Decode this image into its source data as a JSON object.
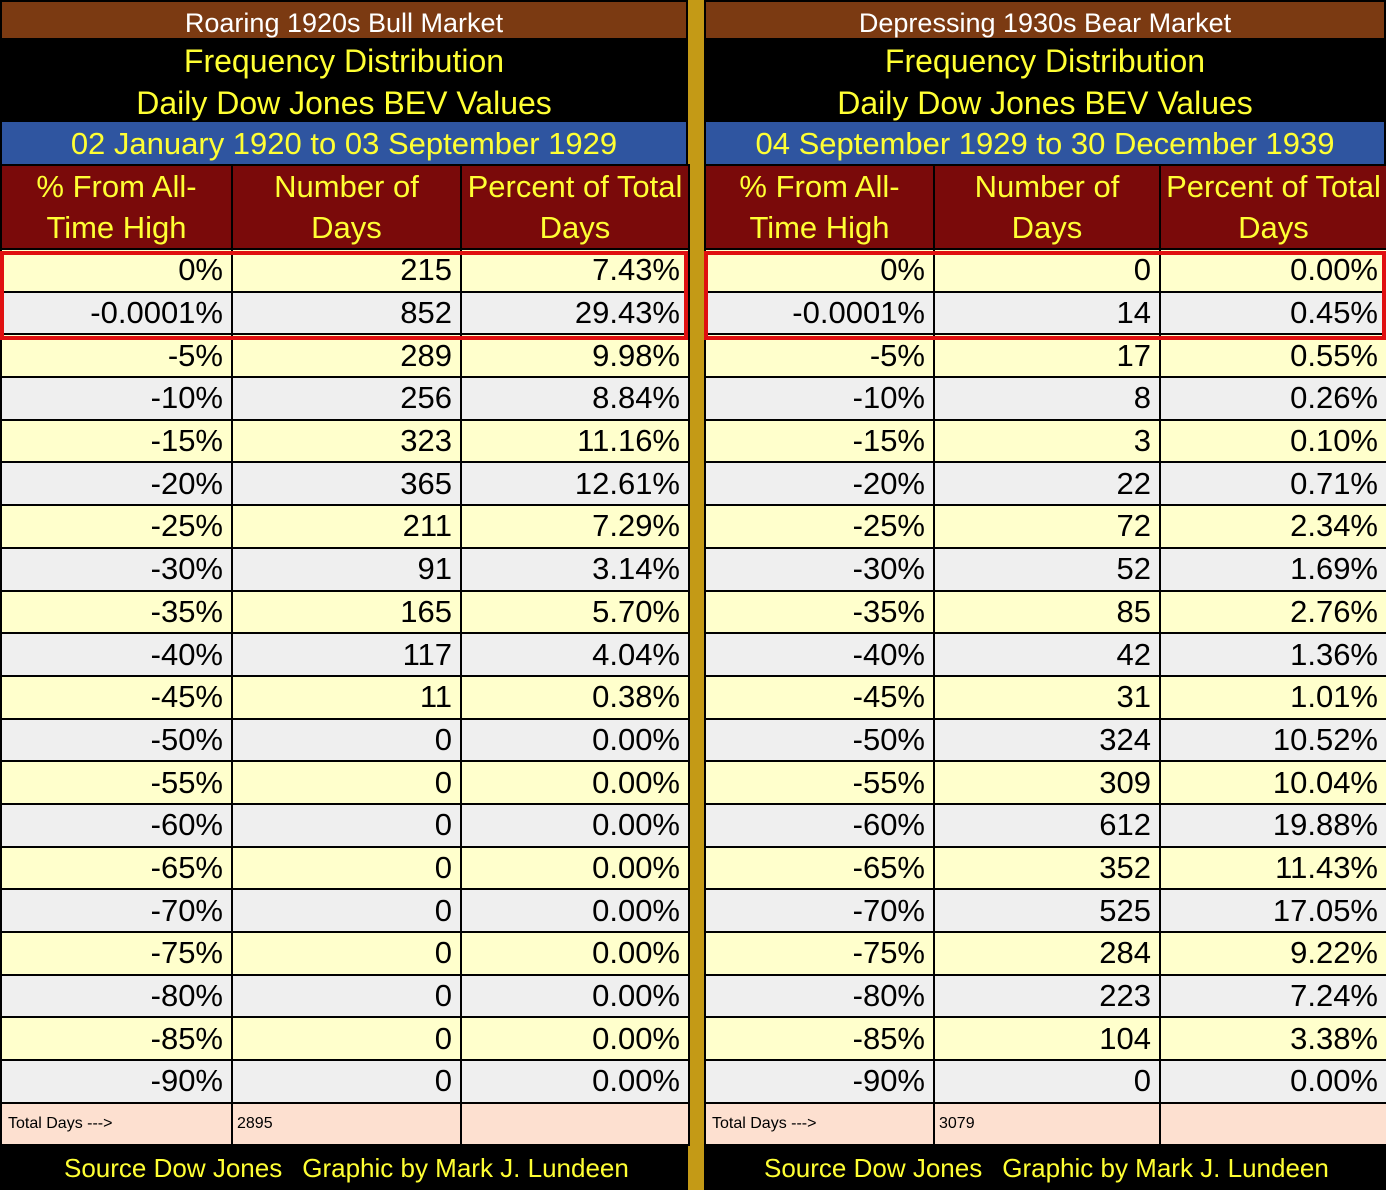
{
  "left": {
    "title": "Roaring 1920s Bull Market",
    "subtitle_line1": "Frequency Distribution",
    "subtitle_line2": "Daily Dow Jones BEV Values",
    "date_range": "02 January 1920 to 03 September 1929",
    "headers": [
      "% From All-Time High",
      "Number of Days",
      "Percent of Total Days"
    ],
    "rows": [
      [
        "0%",
        "215",
        "7.43%"
      ],
      [
        "-0.0001%",
        "852",
        "29.43%"
      ],
      [
        "-5%",
        "289",
        "9.98%"
      ],
      [
        "-10%",
        "256",
        "8.84%"
      ],
      [
        "-15%",
        "323",
        "11.16%"
      ],
      [
        "-20%",
        "365",
        "12.61%"
      ],
      [
        "-25%",
        "211",
        "7.29%"
      ],
      [
        "-30%",
        "91",
        "3.14%"
      ],
      [
        "-35%",
        "165",
        "5.70%"
      ],
      [
        "-40%",
        "117",
        "4.04%"
      ],
      [
        "-45%",
        "11",
        "0.38%"
      ],
      [
        "-50%",
        "0",
        "0.00%"
      ],
      [
        "-55%",
        "0",
        "0.00%"
      ],
      [
        "-60%",
        "0",
        "0.00%"
      ],
      [
        "-65%",
        "0",
        "0.00%"
      ],
      [
        "-70%",
        "0",
        "0.00%"
      ],
      [
        "-75%",
        "0",
        "0.00%"
      ],
      [
        "-80%",
        "0",
        "0.00%"
      ],
      [
        "-85%",
        "0",
        "0.00%"
      ],
      [
        "-90%",
        "0",
        "0.00%"
      ]
    ],
    "total_label": "Total Days --->",
    "total_value": "2895",
    "source": "Source Dow Jones",
    "credit": "Graphic by Mark J. Lundeen"
  },
  "right": {
    "title": "Depressing 1930s Bear Market",
    "subtitle_line1": "Frequency Distribution",
    "subtitle_line2": "Daily Dow Jones BEV Values",
    "date_range": "04 September 1929 to 30 December 1939",
    "headers": [
      "% From All-Time High",
      "Number of Days",
      "Percent of Total Days"
    ],
    "rows": [
      [
        "0%",
        "0",
        "0.00%"
      ],
      [
        "-0.0001%",
        "14",
        "0.45%"
      ],
      [
        "-5%",
        "17",
        "0.55%"
      ],
      [
        "-10%",
        "8",
        "0.26%"
      ],
      [
        "-15%",
        "3",
        "0.10%"
      ],
      [
        "-20%",
        "22",
        "0.71%"
      ],
      [
        "-25%",
        "72",
        "2.34%"
      ],
      [
        "-30%",
        "52",
        "1.69%"
      ],
      [
        "-35%",
        "85",
        "2.76%"
      ],
      [
        "-40%",
        "42",
        "1.36%"
      ],
      [
        "-45%",
        "31",
        "1.01%"
      ],
      [
        "-50%",
        "324",
        "10.52%"
      ],
      [
        "-55%",
        "309",
        "10.04%"
      ],
      [
        "-60%",
        "612",
        "19.88%"
      ],
      [
        "-65%",
        "352",
        "11.43%"
      ],
      [
        "-70%",
        "525",
        "17.05%"
      ],
      [
        "-75%",
        "284",
        "9.22%"
      ],
      [
        "-80%",
        "223",
        "7.24%"
      ],
      [
        "-85%",
        "104",
        "3.38%"
      ],
      [
        "-90%",
        "0",
        "0.00%"
      ]
    ],
    "total_label": "Total Days --->",
    "total_value": "3079",
    "source": "Source Dow Jones",
    "credit": "Graphic by Mark J. Lundeen"
  },
  "colors": {
    "title_bar": "#7b3a12",
    "header_bg": "#7a0a0a",
    "date_bar": "#2f55a0",
    "accent_text": "#ffff33",
    "row_odd": "#ffffcc",
    "row_even": "#efefef",
    "total_row": "#fde0d0",
    "divider": "#c49a16",
    "highlight_border": "#e01010"
  },
  "chart_data": [
    {
      "type": "table",
      "title": "Roaring 1920s Bull Market",
      "columns": [
        "% From All-Time High",
        "Number of Days",
        "Percent of Total Days"
      ],
      "categories": [
        "0%",
        "-0.0001%",
        "-5%",
        "-10%",
        "-15%",
        "-20%",
        "-25%",
        "-30%",
        "-35%",
        "-40%",
        "-45%",
        "-50%",
        "-55%",
        "-60%",
        "-65%",
        "-70%",
        "-75%",
        "-80%",
        "-85%",
        "-90%"
      ],
      "series": [
        {
          "name": "Number of Days",
          "values": [
            215,
            852,
            289,
            256,
            323,
            365,
            211,
            91,
            165,
            117,
            11,
            0,
            0,
            0,
            0,
            0,
            0,
            0,
            0,
            0
          ]
        },
        {
          "name": "Percent of Total Days",
          "values": [
            7.43,
            29.43,
            9.98,
            8.84,
            11.16,
            12.61,
            7.29,
            3.14,
            5.7,
            4.04,
            0.38,
            0.0,
            0.0,
            0.0,
            0.0,
            0.0,
            0.0,
            0.0,
            0.0,
            0.0
          ]
        }
      ],
      "total_days": 2895
    },
    {
      "type": "table",
      "title": "Depressing 1930s Bear Market",
      "columns": [
        "% From All-Time High",
        "Number of Days",
        "Percent of Total Days"
      ],
      "categories": [
        "0%",
        "-0.0001%",
        "-5%",
        "-10%",
        "-15%",
        "-20%",
        "-25%",
        "-30%",
        "-35%",
        "-40%",
        "-45%",
        "-50%",
        "-55%",
        "-60%",
        "-65%",
        "-70%",
        "-75%",
        "-80%",
        "-85%",
        "-90%"
      ],
      "series": [
        {
          "name": "Number of Days",
          "values": [
            0,
            14,
            17,
            8,
            3,
            22,
            72,
            52,
            85,
            42,
            31,
            324,
            309,
            612,
            352,
            525,
            284,
            223,
            104,
            0
          ]
        },
        {
          "name": "Percent of Total Days",
          "values": [
            0.0,
            0.45,
            0.55,
            0.26,
            0.1,
            0.71,
            2.34,
            1.69,
            2.76,
            1.36,
            1.01,
            10.52,
            10.04,
            19.88,
            11.43,
            17.05,
            9.22,
            7.24,
            3.38,
            0.0
          ]
        }
      ],
      "total_days": 3079
    }
  ]
}
